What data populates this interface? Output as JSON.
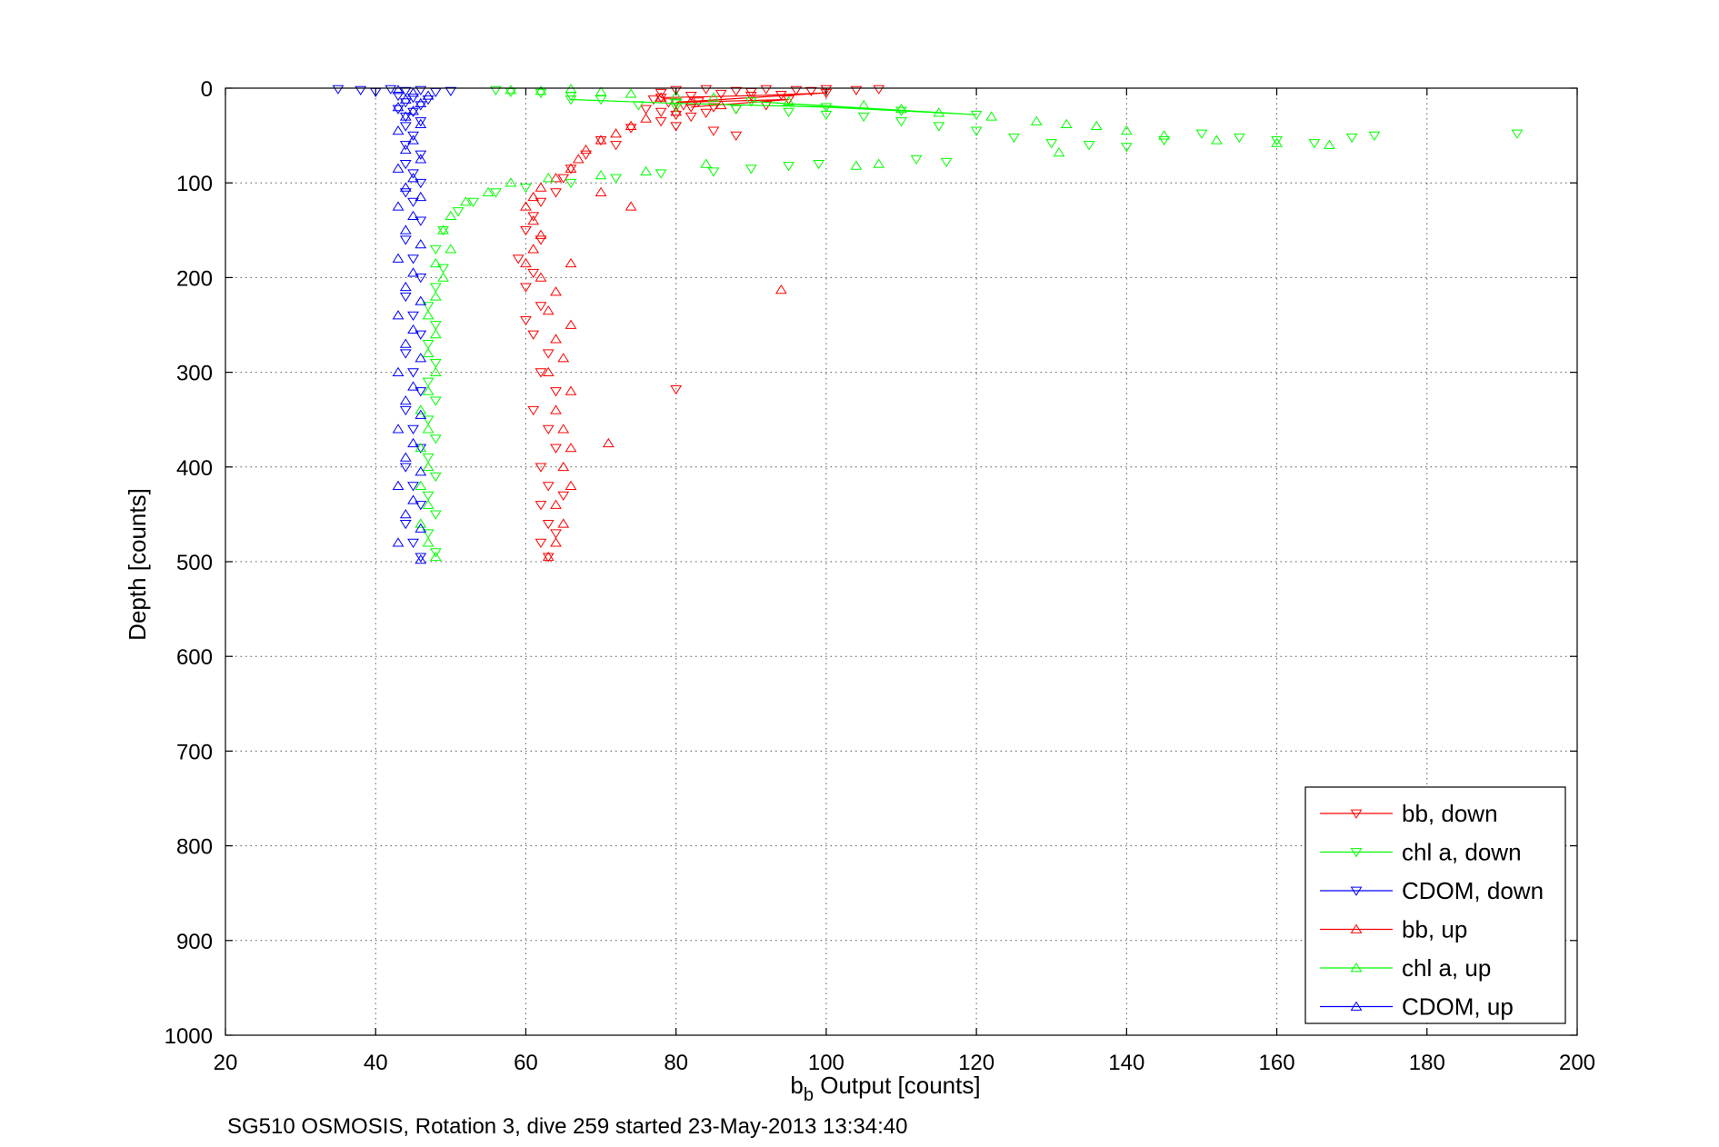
{
  "chart_data": {
    "type": "scatter",
    "title": "",
    "xlabel_main": "b",
    "xlabel_sub": "b",
    "xlabel_rest": " Output [counts]",
    "ylabel": "Depth [counts]",
    "caption": "SG510 OSMOSIS, Rotation 3, dive 259 started 23-May-2013 13:34:40",
    "xlim": [
      20,
      200
    ],
    "ylim": [
      0,
      1000
    ],
    "y_reversed": true,
    "grid": true,
    "legend_position": "bottom-right",
    "xticks": [
      "20",
      "40",
      "60",
      "80",
      "100",
      "120",
      "140",
      "160",
      "180",
      "200"
    ],
    "yticks": [
      "0",
      "100",
      "200",
      "300",
      "400",
      "500",
      "600",
      "700",
      "800",
      "900",
      "1000"
    ],
    "series": [
      {
        "name": "bb, down",
        "color": "#ff0000",
        "marker": "triangle-down",
        "points": [
          [
            80,
            2
          ],
          [
            84,
            1
          ],
          [
            88,
            3
          ],
          [
            92,
            1
          ],
          [
            96,
            2
          ],
          [
            100,
            1
          ],
          [
            104,
            2
          ],
          [
            107,
            1
          ],
          [
            78,
            5
          ],
          [
            82,
            8
          ],
          [
            86,
            6
          ],
          [
            90,
            4
          ],
          [
            94,
            7
          ],
          [
            98,
            3
          ],
          [
            77,
            12
          ],
          [
            79,
            15
          ],
          [
            81,
            18
          ],
          [
            83,
            14
          ],
          [
            85,
            20
          ],
          [
            88,
            22
          ],
          [
            92,
            18
          ],
          [
            76,
            22
          ],
          [
            78,
            25
          ],
          [
            80,
            28
          ],
          [
            82,
            30
          ],
          [
            84,
            26
          ],
          [
            78,
            35
          ],
          [
            80,
            40
          ],
          [
            85,
            45
          ],
          [
            88,
            50
          ],
          [
            74,
            42
          ],
          [
            70,
            55
          ],
          [
            72,
            60
          ],
          [
            68,
            70
          ],
          [
            66,
            85
          ],
          [
            65,
            95
          ],
          [
            64,
            110
          ],
          [
            62,
            120
          ],
          [
            61,
            135
          ],
          [
            60,
            150
          ],
          [
            62,
            160
          ],
          [
            59,
            180
          ],
          [
            61,
            195
          ],
          [
            60,
            210
          ],
          [
            62,
            230
          ],
          [
            60,
            245
          ],
          [
            61,
            260
          ],
          [
            63,
            280
          ],
          [
            62,
            300
          ],
          [
            64,
            320
          ],
          [
            61,
            340
          ],
          [
            63,
            360
          ],
          [
            64,
            380
          ],
          [
            62,
            400
          ],
          [
            63,
            420
          ],
          [
            62,
            440
          ],
          [
            63,
            460
          ],
          [
            62,
            480
          ],
          [
            63,
            495
          ],
          [
            80,
            318
          ],
          [
            65,
            430
          ],
          [
            64,
            470
          ]
        ],
        "connected_points": [
          [
            78,
            10
          ],
          [
            90,
            8
          ],
          [
            100,
            5
          ],
          [
            80,
            15
          ],
          [
            95,
            12
          ],
          [
            82,
            20
          ]
        ]
      },
      {
        "name": "chl a, down",
        "color": "#00ff00",
        "marker": "triangle-down",
        "points": [
          [
            56,
            2
          ],
          [
            58,
            4
          ],
          [
            62,
            5
          ],
          [
            66,
            8
          ],
          [
            70,
            12
          ],
          [
            75,
            18
          ],
          [
            80,
            20
          ],
          [
            88,
            22
          ],
          [
            95,
            25
          ],
          [
            100,
            28
          ],
          [
            105,
            30
          ],
          [
            110,
            35
          ],
          [
            115,
            40
          ],
          [
            120,
            45
          ],
          [
            125,
            52
          ],
          [
            130,
            58
          ],
          [
            135,
            60
          ],
          [
            140,
            62
          ],
          [
            145,
            55
          ],
          [
            150,
            48
          ],
          [
            155,
            52
          ],
          [
            160,
            55
          ],
          [
            165,
            58
          ],
          [
            170,
            52
          ],
          [
            173,
            50
          ],
          [
            192,
            48
          ],
          [
            112,
            75
          ],
          [
            116,
            78
          ],
          [
            99,
            80
          ],
          [
            95,
            82
          ],
          [
            90,
            85
          ],
          [
            85,
            88
          ],
          [
            78,
            90
          ],
          [
            72,
            95
          ],
          [
            66,
            100
          ],
          [
            60,
            105
          ],
          [
            56,
            110
          ],
          [
            53,
            120
          ],
          [
            51,
            130
          ],
          [
            49,
            150
          ],
          [
            48,
            170
          ],
          [
            49,
            190
          ],
          [
            48,
            210
          ],
          [
            47,
            230
          ],
          [
            48,
            250
          ],
          [
            47,
            270
          ],
          [
            48,
            290
          ],
          [
            47,
            310
          ],
          [
            48,
            330
          ],
          [
            47,
            350
          ],
          [
            48,
            370
          ],
          [
            47,
            390
          ],
          [
            48,
            410
          ],
          [
            47,
            430
          ],
          [
            48,
            450
          ],
          [
            47,
            470
          ],
          [
            48,
            490
          ]
        ],
        "connected_points": [
          [
            66,
            12
          ],
          [
            80,
            16
          ],
          [
            100,
            20
          ],
          [
            120,
            28
          ],
          [
            90,
            14
          ],
          [
            110,
            24
          ]
        ]
      },
      {
        "name": "CDOM, down",
        "color": "#0000ff",
        "marker": "triangle-down",
        "points": [
          [
            35,
            1
          ],
          [
            38,
            2
          ],
          [
            40,
            4
          ],
          [
            42,
            1
          ],
          [
            44,
            3
          ],
          [
            46,
            2
          ],
          [
            48,
            4
          ],
          [
            50,
            3
          ],
          [
            43,
            8
          ],
          [
            45,
            10
          ],
          [
            47,
            12
          ],
          [
            44,
            15
          ],
          [
            46,
            18
          ],
          [
            43,
            22
          ],
          [
            45,
            25
          ],
          [
            44,
            30
          ],
          [
            46,
            35
          ],
          [
            44,
            40
          ],
          [
            45,
            50
          ],
          [
            44,
            60
          ],
          [
            46,
            70
          ],
          [
            44,
            80
          ],
          [
            45,
            90
          ],
          [
            46,
            100
          ],
          [
            44,
            110
          ],
          [
            45,
            120
          ],
          [
            46,
            140
          ],
          [
            44,
            160
          ],
          [
            45,
            180
          ],
          [
            46,
            200
          ],
          [
            44,
            220
          ],
          [
            45,
            240
          ],
          [
            46,
            260
          ],
          [
            44,
            280
          ],
          [
            45,
            300
          ],
          [
            46,
            320
          ],
          [
            44,
            340
          ],
          [
            45,
            360
          ],
          [
            46,
            380
          ],
          [
            44,
            400
          ],
          [
            45,
            420
          ],
          [
            46,
            440
          ],
          [
            44,
            460
          ],
          [
            45,
            480
          ],
          [
            46,
            495
          ]
        ]
      },
      {
        "name": "bb, up",
        "color": "#ff0000",
        "marker": "triangle-up",
        "points": [
          [
            78,
            10
          ],
          [
            82,
            14
          ],
          [
            86,
            18
          ],
          [
            80,
            25
          ],
          [
            76,
            32
          ],
          [
            74,
            40
          ],
          [
            72,
            48
          ],
          [
            70,
            55
          ],
          [
            68,
            65
          ],
          [
            67,
            75
          ],
          [
            66,
            85
          ],
          [
            64,
            95
          ],
          [
            62,
            105
          ],
          [
            61,
            115
          ],
          [
            60,
            125
          ],
          [
            61,
            140
          ],
          [
            62,
            155
          ],
          [
            61,
            170
          ],
          [
            60,
            185
          ],
          [
            66,
            185
          ],
          [
            62,
            200
          ],
          [
            64,
            215
          ],
          [
            63,
            235
          ],
          [
            66,
            250
          ],
          [
            64,
            265
          ],
          [
            65,
            285
          ],
          [
            63,
            300
          ],
          [
            66,
            320
          ],
          [
            64,
            340
          ],
          [
            65,
            360
          ],
          [
            66,
            380
          ],
          [
            71,
            375
          ],
          [
            65,
            400
          ],
          [
            66,
            420
          ],
          [
            64,
            440
          ],
          [
            65,
            460
          ],
          [
            64,
            480
          ],
          [
            63,
            495
          ],
          [
            74,
            125
          ],
          [
            70,
            110
          ],
          [
            94,
            213
          ]
        ]
      },
      {
        "name": "chl a, up",
        "color": "#00ff00",
        "marker": "triangle-up",
        "points": [
          [
            58,
            2
          ],
          [
            62,
            3
          ],
          [
            66,
            1
          ],
          [
            70,
            4
          ],
          [
            74,
            6
          ],
          [
            80,
            8
          ],
          [
            85,
            10
          ],
          [
            95,
            14
          ],
          [
            105,
            18
          ],
          [
            110,
            22
          ],
          [
            115,
            26
          ],
          [
            122,
            30
          ],
          [
            128,
            35
          ],
          [
            132,
            38
          ],
          [
            136,
            40
          ],
          [
            140,
            45
          ],
          [
            145,
            50
          ],
          [
            152,
            55
          ],
          [
            160,
            58
          ],
          [
            167,
            60
          ],
          [
            84,
            80
          ],
          [
            76,
            88
          ],
          [
            70,
            92
          ],
          [
            63,
            95
          ],
          [
            58,
            100
          ],
          [
            55,
            110
          ],
          [
            52,
            120
          ],
          [
            50,
            135
          ],
          [
            49,
            150
          ],
          [
            50,
            170
          ],
          [
            48,
            185
          ],
          [
            49,
            200
          ],
          [
            48,
            220
          ],
          [
            47,
            240
          ],
          [
            48,
            260
          ],
          [
            47,
            280
          ],
          [
            48,
            300
          ],
          [
            47,
            320
          ],
          [
            46,
            340
          ],
          [
            47,
            360
          ],
          [
            46,
            380
          ],
          [
            47,
            400
          ],
          [
            46,
            420
          ],
          [
            47,
            440
          ],
          [
            46,
            460
          ],
          [
            47,
            480
          ],
          [
            48,
            495
          ],
          [
            104,
            82
          ],
          [
            107,
            80
          ],
          [
            131,
            68
          ]
        ]
      },
      {
        "name": "CDOM, up",
        "color": "#0000ff",
        "marker": "triangle-up",
        "points": [
          [
            43,
            2
          ],
          [
            45,
            5
          ],
          [
            47,
            8
          ],
          [
            44,
            12
          ],
          [
            46,
            16
          ],
          [
            43,
            20
          ],
          [
            45,
            24
          ],
          [
            44,
            30
          ],
          [
            46,
            38
          ],
          [
            43,
            45
          ],
          [
            45,
            55
          ],
          [
            44,
            65
          ],
          [
            46,
            75
          ],
          [
            43,
            85
          ],
          [
            45,
            95
          ],
          [
            44,
            105
          ],
          [
            46,
            115
          ],
          [
            43,
            125
          ],
          [
            45,
            135
          ],
          [
            44,
            150
          ],
          [
            46,
            165
          ],
          [
            43,
            180
          ],
          [
            45,
            195
          ],
          [
            44,
            210
          ],
          [
            46,
            225
          ],
          [
            43,
            240
          ],
          [
            45,
            255
          ],
          [
            44,
            270
          ],
          [
            46,
            285
          ],
          [
            43,
            300
          ],
          [
            45,
            315
          ],
          [
            44,
            330
          ],
          [
            46,
            345
          ],
          [
            43,
            360
          ],
          [
            45,
            375
          ],
          [
            44,
            390
          ],
          [
            46,
            405
          ],
          [
            43,
            420
          ],
          [
            45,
            435
          ],
          [
            44,
            450
          ],
          [
            46,
            465
          ],
          [
            43,
            480
          ],
          [
            46,
            498
          ]
        ]
      }
    ]
  }
}
